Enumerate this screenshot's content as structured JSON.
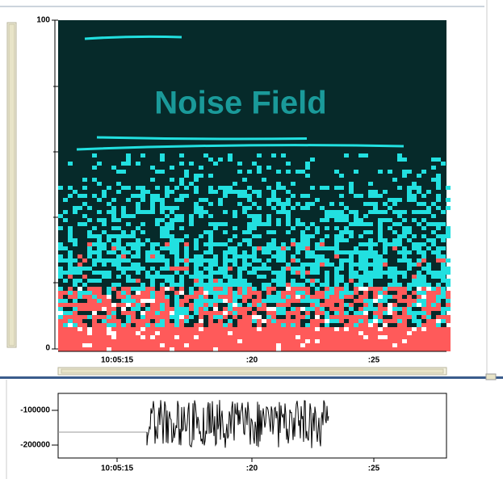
{
  "spectrogram": {
    "title": "Noise Field",
    "y_labels": [
      "100",
      "0"
    ],
    "x_labels": [
      "10:05:15",
      ":20",
      ":25"
    ]
  },
  "waveform": {
    "y_labels": [
      "-100000",
      "-200000"
    ],
    "x_labels": [
      "10:05:15",
      ":20",
      ":25"
    ]
  }
}
